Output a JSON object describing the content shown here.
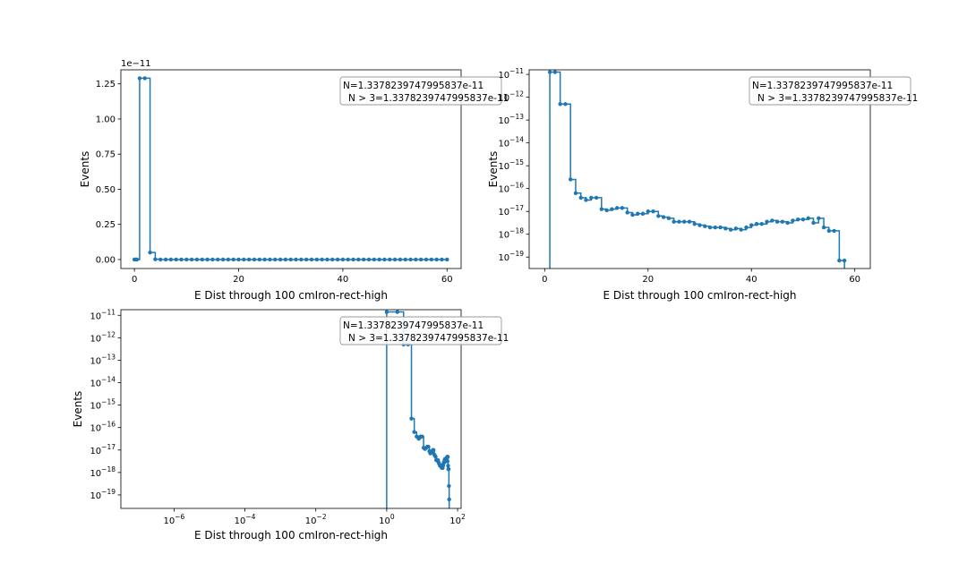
{
  "chart_data": [
    {
      "type": "line",
      "scale_y": "linear",
      "scale_x": "linear",
      "xlabel": "E Dist through 100 cmIron-rect-high",
      "ylabel": "Events",
      "offset_text": "1e−11",
      "xlim": [
        -2.6,
        62.7
      ],
      "ylim": [
        -0.064,
        1.35
      ],
      "xticks": [
        0,
        20,
        40,
        60
      ],
      "xtick_labels": [
        "0",
        "20",
        "40",
        "60"
      ],
      "yticks": [
        0.0,
        0.25,
        0.5,
        0.75,
        1.0,
        1.25
      ],
      "ytick_labels": [
        "0.00",
        "0.25",
        "0.50",
        "0.75",
        "1.00",
        "1.25"
      ],
      "legend_lines": [
        "N=1.3378239747995837e-11",
        "N > 3=1.3378239747995837e-11"
      ],
      "legend_loc": "upper right",
      "grid": false,
      "drawstyle": "steps-post",
      "series": [
        {
          "color": "#1f77b4",
          "x": [
            0,
            0.24,
            0.49,
            1,
            2,
            3,
            4,
            5,
            6,
            7,
            8,
            9,
            10,
            11,
            12,
            13,
            14,
            15,
            16,
            17,
            18,
            19,
            20,
            21,
            22,
            23,
            24,
            25,
            26,
            27,
            28,
            29,
            30,
            31,
            32,
            33,
            34,
            35,
            36,
            37,
            38,
            39,
            40,
            41,
            42,
            43,
            44,
            45,
            46,
            47,
            48,
            49,
            50,
            51,
            52,
            53,
            54,
            55,
            56,
            57,
            58,
            59,
            60
          ],
          "y": [
            0,
            0,
            0,
            1.29,
            1.29,
            0.05,
            0.002,
            0,
            0,
            0,
            0,
            0,
            0,
            0,
            0,
            0,
            0,
            0,
            0,
            0,
            0,
            0,
            0,
            0,
            0,
            0,
            0,
            0,
            0,
            0,
            0,
            0,
            0,
            0,
            0,
            0,
            0,
            0,
            0,
            0,
            0,
            0,
            0,
            0,
            0,
            0,
            0,
            0,
            0,
            0,
            0,
            0,
            0,
            0,
            0,
            0,
            0,
            0,
            0,
            0,
            0,
            0,
            0
          ]
        }
      ]
    },
    {
      "type": "line",
      "scale_y": "log",
      "scale_x": "linear",
      "xlabel": "E Dist through 100 cmIron-rect-high",
      "ylabel": "Events",
      "xlim": [
        -3,
        63
      ],
      "ylim_exp": [
        -19.5,
        -10.8
      ],
      "xticks": [
        0,
        20,
        40,
        60
      ],
      "xtick_labels": [
        "0",
        "20",
        "40",
        "60"
      ],
      "yticks_exp": [
        -19,
        -18,
        -17,
        -16,
        -15,
        -14,
        -13,
        -12,
        -11
      ],
      "legend_lines": [
        "N=1.3378239747995837e-11",
        "N > 3=1.3378239747995837e-11"
      ],
      "legend_loc": "upper right",
      "grid": false,
      "drawstyle": "steps-post",
      "series": [
        {
          "color": "#1f77b4",
          "x": [
            1,
            2,
            3,
            4,
            5,
            6,
            7,
            8,
            9,
            10,
            11,
            12,
            13,
            14,
            15,
            16,
            17,
            18,
            19,
            20,
            21,
            22,
            23,
            24,
            25,
            26,
            27,
            28,
            29,
            30,
            31,
            32,
            33,
            34,
            35,
            36,
            37,
            38,
            39,
            40,
            41,
            42,
            43,
            44,
            45,
            46,
            47,
            48,
            49,
            50,
            51,
            52,
            53,
            54,
            55,
            56,
            57,
            58
          ],
          "y_exp": [
            -10.9,
            -10.9,
            -12.3,
            -12.3,
            -15.6,
            -16.2,
            -16.4,
            -16.5,
            -16.4,
            -16.4,
            -16.9,
            -16.95,
            -16.9,
            -16.85,
            -16.85,
            -17.05,
            -17.15,
            -17.1,
            -17.1,
            -17.0,
            -17.0,
            -17.2,
            -17.25,
            -17.3,
            -17.45,
            -17.45,
            -17.45,
            -17.45,
            -17.55,
            -17.6,
            -17.65,
            -17.7,
            -17.7,
            -17.7,
            -17.75,
            -17.8,
            -17.75,
            -17.8,
            -17.7,
            -17.6,
            -17.55,
            -17.55,
            -17.45,
            -17.4,
            -17.45,
            -17.45,
            -17.5,
            -17.4,
            -17.35,
            -17.35,
            -17.3,
            -17.5,
            -17.3,
            -17.7,
            -17.85,
            -17.85,
            -19.15,
            -19.15
          ]
        }
      ]
    },
    {
      "type": "line",
      "scale_y": "log",
      "scale_x": "log",
      "xlabel": "E Dist through 100 cmIron-rect-high",
      "ylabel": "Events",
      "xlim_exp": [
        -7.5,
        2.1
      ],
      "ylim_exp": [
        -19.6,
        -10.75
      ],
      "xticks_exp": [
        -6,
        -4,
        -2,
        0,
        2
      ],
      "yticks_exp": [
        -19,
        -18,
        -17,
        -16,
        -15,
        -14,
        -13,
        -12,
        -11
      ],
      "legend_lines": [
        "N=1.3378239747995837e-11",
        "N > 3=1.3378239747995837e-11"
      ],
      "legend_loc": "upper right",
      "grid": false,
      "drawstyle": "steps-post",
      "series": [
        {
          "color": "#1f77b4",
          "x": [
            1,
            2,
            3,
            4,
            5,
            6,
            7,
            8,
            9,
            10,
            11,
            12,
            13,
            14,
            15,
            16,
            17,
            18,
            19,
            20,
            21,
            22,
            23,
            24,
            25,
            26,
            27,
            28,
            29,
            30,
            31,
            32,
            33,
            34,
            35,
            36,
            37,
            38,
            39,
            40,
            41,
            42,
            43,
            44,
            45,
            46,
            47,
            48,
            49,
            50,
            51,
            52,
            53,
            54,
            55,
            56,
            57,
            58
          ],
          "y_exp": [
            -10.85,
            -10.85,
            -12.3,
            -12.3,
            -15.6,
            -16.2,
            -16.4,
            -16.5,
            -16.4,
            -16.4,
            -16.9,
            -16.95,
            -16.9,
            -16.85,
            -16.85,
            -17.05,
            -17.15,
            -17.1,
            -17.1,
            -17.0,
            -17.0,
            -17.2,
            -17.25,
            -17.3,
            -17.45,
            -17.45,
            -17.45,
            -17.45,
            -17.55,
            -17.6,
            -17.65,
            -17.7,
            -17.7,
            -17.7,
            -17.75,
            -17.8,
            -17.75,
            -17.8,
            -17.7,
            -17.6,
            -17.55,
            -17.55,
            -17.45,
            -17.4,
            -17.45,
            -17.45,
            -17.5,
            -17.4,
            -17.35,
            -17.35,
            -17.3,
            -17.5,
            -17.3,
            -17.7,
            -17.85,
            -17.85,
            -18.6,
            -19.2
          ]
        }
      ]
    }
  ]
}
